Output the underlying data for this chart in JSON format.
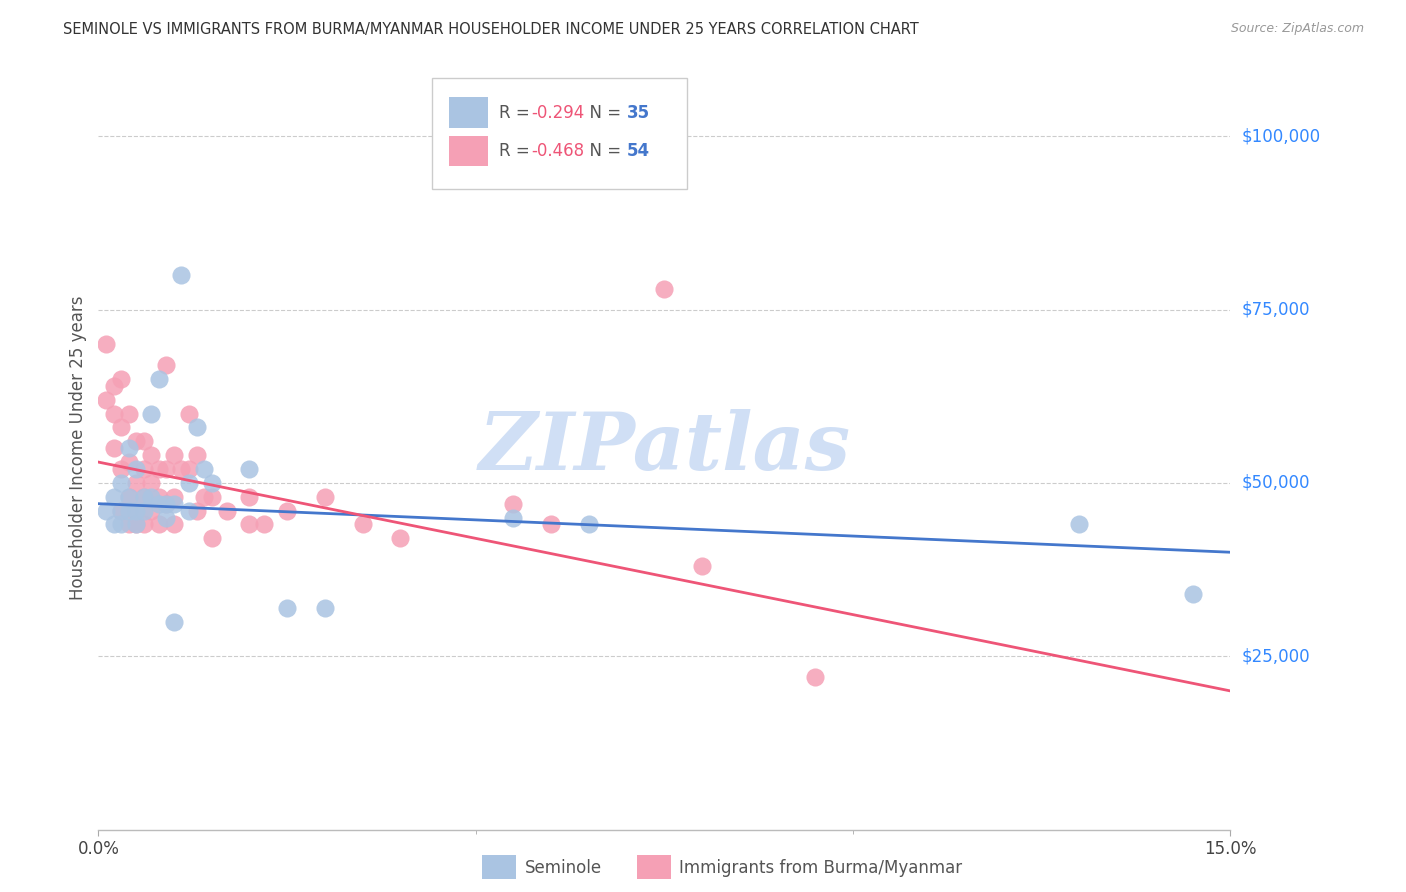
{
  "title": "SEMINOLE VS IMMIGRANTS FROM BURMA/MYANMAR HOUSEHOLDER INCOME UNDER 25 YEARS CORRELATION CHART",
  "source": "Source: ZipAtlas.com",
  "ylabel": "Householder Income Under 25 years",
  "y_ticks": [
    25000,
    50000,
    75000,
    100000
  ],
  "y_tick_labels": [
    "$25,000",
    "$50,000",
    "$75,000",
    "$100,000"
  ],
  "xlim": [
    0.0,
    0.15
  ],
  "ylim": [
    0,
    110000
  ],
  "seminole_color": "#aac4e2",
  "burma_color": "#f5a0b5",
  "seminole_line_color": "#4477cc",
  "burma_line_color": "#ee5577",
  "watermark": "ZIPatlas",
  "watermark_color": "#d0dff5",
  "seminole_line": [
    47000,
    40000
  ],
  "burma_line": [
    53000,
    20000
  ],
  "seminole_data": [
    [
      0.001,
      46000
    ],
    [
      0.002,
      44000
    ],
    [
      0.002,
      48000
    ],
    [
      0.003,
      50000
    ],
    [
      0.003,
      46000
    ],
    [
      0.003,
      44000
    ],
    [
      0.004,
      55000
    ],
    [
      0.004,
      48000
    ],
    [
      0.004,
      46000
    ],
    [
      0.005,
      52000
    ],
    [
      0.005,
      46000
    ],
    [
      0.005,
      44000
    ],
    [
      0.006,
      48000
    ],
    [
      0.006,
      46000
    ],
    [
      0.007,
      60000
    ],
    [
      0.007,
      48000
    ],
    [
      0.008,
      65000
    ],
    [
      0.008,
      47000
    ],
    [
      0.009,
      47000
    ],
    [
      0.009,
      45000
    ],
    [
      0.01,
      47000
    ],
    [
      0.01,
      30000
    ],
    [
      0.011,
      80000
    ],
    [
      0.012,
      50000
    ],
    [
      0.012,
      46000
    ],
    [
      0.013,
      58000
    ],
    [
      0.014,
      52000
    ],
    [
      0.015,
      50000
    ],
    [
      0.02,
      52000
    ],
    [
      0.025,
      32000
    ],
    [
      0.03,
      32000
    ],
    [
      0.055,
      45000
    ],
    [
      0.065,
      44000
    ],
    [
      0.13,
      44000
    ],
    [
      0.145,
      34000
    ]
  ],
  "burma_data": [
    [
      0.001,
      70000
    ],
    [
      0.001,
      62000
    ],
    [
      0.002,
      64000
    ],
    [
      0.002,
      60000
    ],
    [
      0.002,
      55000
    ],
    [
      0.003,
      65000
    ],
    [
      0.003,
      58000
    ],
    [
      0.003,
      52000
    ],
    [
      0.003,
      46000
    ],
    [
      0.004,
      60000
    ],
    [
      0.004,
      53000
    ],
    [
      0.004,
      48000
    ],
    [
      0.004,
      44000
    ],
    [
      0.005,
      56000
    ],
    [
      0.005,
      50000
    ],
    [
      0.005,
      46000
    ],
    [
      0.005,
      44000
    ],
    [
      0.006,
      56000
    ],
    [
      0.006,
      52000
    ],
    [
      0.006,
      48000
    ],
    [
      0.006,
      44000
    ],
    [
      0.007,
      54000
    ],
    [
      0.007,
      50000
    ],
    [
      0.007,
      46000
    ],
    [
      0.008,
      52000
    ],
    [
      0.008,
      48000
    ],
    [
      0.008,
      44000
    ],
    [
      0.009,
      67000
    ],
    [
      0.009,
      52000
    ],
    [
      0.009,
      47000
    ],
    [
      0.01,
      54000
    ],
    [
      0.01,
      48000
    ],
    [
      0.01,
      44000
    ],
    [
      0.011,
      52000
    ],
    [
      0.012,
      60000
    ],
    [
      0.012,
      52000
    ],
    [
      0.013,
      54000
    ],
    [
      0.013,
      46000
    ],
    [
      0.014,
      48000
    ],
    [
      0.015,
      48000
    ],
    [
      0.015,
      42000
    ],
    [
      0.017,
      46000
    ],
    [
      0.02,
      48000
    ],
    [
      0.02,
      44000
    ],
    [
      0.022,
      44000
    ],
    [
      0.025,
      46000
    ],
    [
      0.03,
      48000
    ],
    [
      0.035,
      44000
    ],
    [
      0.04,
      42000
    ],
    [
      0.055,
      47000
    ],
    [
      0.06,
      44000
    ],
    [
      0.075,
      78000
    ],
    [
      0.08,
      38000
    ],
    [
      0.095,
      22000
    ]
  ]
}
